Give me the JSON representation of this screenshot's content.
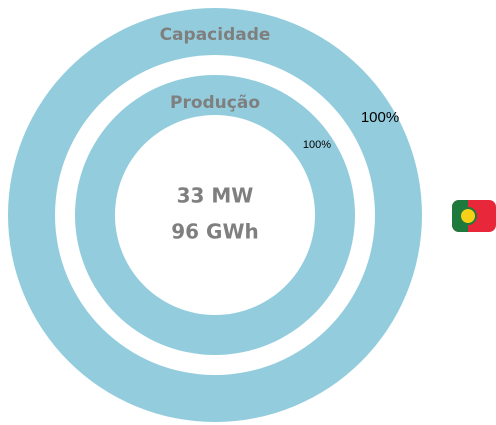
{
  "chart_data": [
    {
      "type": "donut",
      "title": "Capacidade",
      "values": [
        100
      ],
      "value_labels": [
        "100%"
      ],
      "color": "#93cddd"
    },
    {
      "type": "donut",
      "title": "Produção",
      "values": [
        100
      ],
      "value_labels": [
        "100%"
      ],
      "color": "#93cddd"
    }
  ],
  "center_text": [
    "33 MW",
    "96 GWh"
  ]
}
